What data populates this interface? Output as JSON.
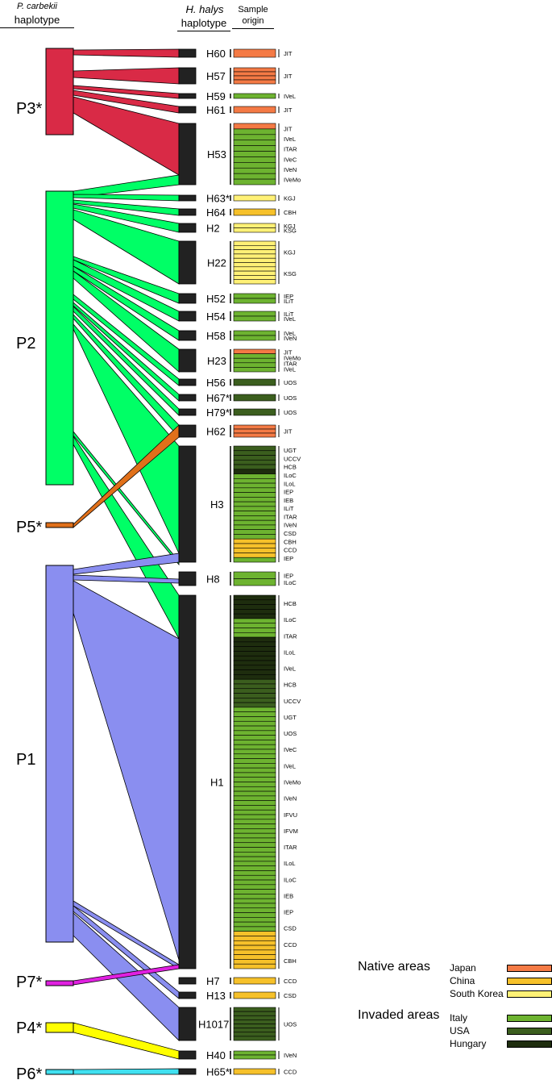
{
  "header": {
    "pc_line1": "P. carbekii",
    "pc_line2": "haplotype",
    "hh_line1": "H. halys",
    "hh_line2": "haplotype",
    "so_line1": "Sample",
    "so_line2": "origin"
  },
  "colors": {
    "P3": "#d92a46",
    "P2": "#00ff66",
    "P5": "#e0701a",
    "P1": "#8a8ef0",
    "P7": "#e020e0",
    "P4": "#ffff00",
    "P6": "#40e0f0",
    "Japan": "#f47a45",
    "China": "#f6c12a",
    "South Korea": "#fff176",
    "Italy": "#6db330",
    "USA": "#3b5e1e",
    "Hungary": "#1e2d0e"
  },
  "pc_haplotypes": [
    {
      "label": "P3*",
      "color": "P3"
    },
    {
      "label": "P2",
      "color": "P2"
    },
    {
      "label": "P5*",
      "color": "P5"
    },
    {
      "label": "P1",
      "color": "P1"
    },
    {
      "label": "P7*",
      "color": "P7"
    },
    {
      "label": "P4*",
      "color": "P4"
    },
    {
      "label": "P6*",
      "color": "P6"
    }
  ],
  "hh_haplotypes": [
    {
      "label": "H60",
      "origins": [
        "JIT"
      ],
      "samples": [
        {
          "n": 1,
          "c": "Japan"
        }
      ]
    },
    {
      "label": "H57",
      "origins": [
        "JIT"
      ],
      "samples": [
        {
          "n": 4,
          "c": "Japan"
        }
      ]
    },
    {
      "label": "H59",
      "origins": [
        "IVeL"
      ],
      "samples": [
        {
          "n": 1,
          "c": "Italy"
        }
      ]
    },
    {
      "label": "H61",
      "origins": [
        "JIT"
      ],
      "samples": [
        {
          "n": 1,
          "c": "Japan"
        }
      ]
    },
    {
      "label": "H53",
      "origins": [
        "JIT",
        "IVeL",
        "ITAR",
        "IVeC",
        "IVeN",
        "IVeMo"
      ],
      "samples": [
        {
          "n": 1,
          "c": "Japan"
        },
        {
          "n": 10,
          "c": "Italy"
        }
      ]
    },
    {
      "label": "H63*",
      "origins": [
        "KGJ"
      ],
      "samples": [
        {
          "n": 1,
          "c": "South Korea"
        }
      ]
    },
    {
      "label": "H64",
      "origins": [
        "CBH"
      ],
      "samples": [
        {
          "n": 1,
          "c": "China"
        }
      ]
    },
    {
      "label": "H2",
      "origins": [
        "KGJ",
        "KSG"
      ],
      "samples": [
        {
          "n": 2,
          "c": "South Korea"
        }
      ]
    },
    {
      "label": "H22",
      "origins": [
        "KGJ",
        "KSG"
      ],
      "samples": [
        {
          "n": 10,
          "c": "South Korea"
        }
      ]
    },
    {
      "label": "H52",
      "origins": [
        "IEP",
        "ILiT"
      ],
      "samples": [
        {
          "n": 2,
          "c": "Italy"
        }
      ]
    },
    {
      "label": "H54",
      "origins": [
        "ILiT",
        "IVeL"
      ],
      "samples": [
        {
          "n": 2,
          "c": "Italy"
        }
      ]
    },
    {
      "label": "H58",
      "origins": [
        "IVeL",
        "IVeN"
      ],
      "samples": [
        {
          "n": 2,
          "c": "Italy"
        }
      ]
    },
    {
      "label": "H23",
      "origins": [
        "JIT",
        "IVeMo",
        "ITAR",
        "IVeL"
      ],
      "samples": [
        {
          "n": 1,
          "c": "Japan"
        },
        {
          "n": 4,
          "c": "Italy"
        }
      ]
    },
    {
      "label": "H56",
      "origins": [
        "UOS"
      ],
      "samples": [
        {
          "n": 1,
          "c": "USA"
        }
      ]
    },
    {
      "label": "H67*",
      "origins": [
        "UOS"
      ],
      "samples": [
        {
          "n": 1,
          "c": "USA"
        }
      ]
    },
    {
      "label": "H79*",
      "origins": [
        "UOS"
      ],
      "samples": [
        {
          "n": 1,
          "c": "USA"
        }
      ]
    },
    {
      "label": "H62",
      "origins": [
        "JIT"
      ],
      "samples": [
        {
          "n": 3,
          "c": "Japan"
        }
      ]
    },
    {
      "label": "H3",
      "origins": [
        "UGT",
        "UCCV",
        "HCB",
        "ILoC",
        "ILoL",
        "IEP",
        "IEB",
        "ILiT",
        "ITAR",
        "IVeN",
        "CSD",
        "CBH",
        "CCD",
        "IEP"
      ],
      "samples": [
        {
          "n": 5,
          "c": "USA"
        },
        {
          "n": 1,
          "c": "Hungary"
        },
        {
          "n": 14,
          "c": "Italy"
        },
        {
          "n": 4,
          "c": "China"
        },
        {
          "n": 1,
          "c": "Italy"
        }
      ]
    },
    {
      "label": "H8",
      "origins": [
        "IEP",
        "ILoC"
      ],
      "samples": [
        {
          "n": 2,
          "c": "Italy"
        }
      ]
    },
    {
      "label": "H1",
      "origins": [
        "HCB",
        "ILoC",
        "ITAR",
        "ILoL",
        "IVeL",
        "HCB",
        "UCCV",
        "UGT",
        "UOS",
        "IVeC",
        "IVeL",
        "IVeMo",
        "IVeN",
        "IFVU",
        "IFVM",
        "ITAR",
        "ILoL",
        "ILoC",
        "IEB",
        "IEP",
        "CSD",
        "CCD",
        "CBH"
      ],
      "samples": [
        {
          "n": 5,
          "c": "Hungary"
        },
        {
          "n": 4,
          "c": "Italy"
        },
        {
          "n": 9,
          "c": "Hungary"
        },
        {
          "n": 6,
          "c": "USA"
        },
        {
          "n": 48,
          "c": "Italy"
        },
        {
          "n": 8,
          "c": "China"
        }
      ]
    },
    {
      "label": "H7",
      "origins": [
        "CCD"
      ],
      "samples": [
        {
          "n": 1,
          "c": "China"
        }
      ]
    },
    {
      "label": "H13",
      "origins": [
        "CSD"
      ],
      "samples": [
        {
          "n": 1,
          "c": "China"
        }
      ]
    },
    {
      "label": "H1017",
      "origins": [
        "UOS"
      ],
      "samples": [
        {
          "n": 8,
          "c": "USA"
        }
      ]
    },
    {
      "label": "H40",
      "origins": [
        "IVeN"
      ],
      "samples": [
        {
          "n": 2,
          "c": "Italy"
        }
      ]
    },
    {
      "label": "H65*",
      "origins": [
        "CCD"
      ],
      "samples": [
        {
          "n": 1,
          "c": "China"
        }
      ]
    }
  ],
  "links": [
    {
      "from": "P3*",
      "to": "H60"
    },
    {
      "from": "P3*",
      "to": "H57"
    },
    {
      "from": "P3*",
      "to": "H59"
    },
    {
      "from": "P3*",
      "to": "H61"
    },
    {
      "from": "P3*",
      "to": "H53"
    },
    {
      "from": "P2",
      "to": "H53"
    },
    {
      "from": "P2",
      "to": "H63*"
    },
    {
      "from": "P2",
      "to": "H64"
    },
    {
      "from": "P2",
      "to": "H2"
    },
    {
      "from": "P2",
      "to": "H22"
    },
    {
      "from": "P2",
      "to": "H52"
    },
    {
      "from": "P2",
      "to": "H54"
    },
    {
      "from": "P2",
      "to": "H58"
    },
    {
      "from": "P2",
      "to": "H23"
    },
    {
      "from": "P2",
      "to": "H56"
    },
    {
      "from": "P2",
      "to": "H67*"
    },
    {
      "from": "P2",
      "to": "H79*"
    },
    {
      "from": "P2",
      "to": "H62"
    },
    {
      "from": "P2",
      "to": "H3"
    },
    {
      "from": "P2",
      "to": "H8"
    },
    {
      "from": "P2",
      "to": "H1"
    },
    {
      "from": "P5*",
      "to": "H62"
    },
    {
      "from": "P1",
      "to": "H3"
    },
    {
      "from": "P1",
      "to": "H8"
    },
    {
      "from": "P1",
      "to": "H1"
    },
    {
      "from": "P1",
      "to": "H7"
    },
    {
      "from": "P1",
      "to": "H13"
    },
    {
      "from": "P1",
      "to": "H1017"
    },
    {
      "from": "P7*",
      "to": "H7"
    },
    {
      "from": "P4*",
      "to": "H40"
    },
    {
      "from": "P6*",
      "to": "H65*"
    }
  ],
  "legend": {
    "native_title": "Native areas",
    "invaded_title": "Invaded areas",
    "native": [
      {
        "name": "Japan"
      },
      {
        "name": "China"
      },
      {
        "name": "South Korea"
      }
    ],
    "invaded": [
      {
        "name": "Italy"
      },
      {
        "name": "USA"
      },
      {
        "name": "Hungary"
      }
    ]
  }
}
